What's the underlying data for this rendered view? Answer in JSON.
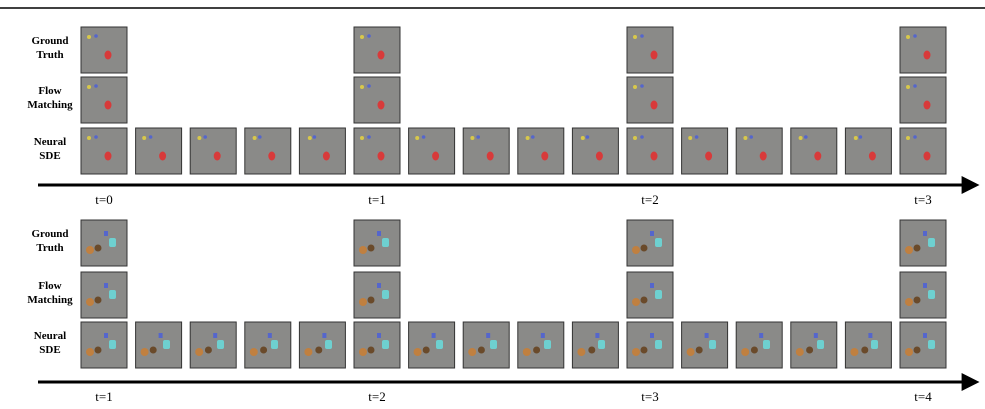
{
  "panels": [
    {
      "rows": [
        {
          "label": [
            "Ground",
            "Truth"
          ]
        },
        {
          "label": [
            "Flow",
            "Matching"
          ]
        },
        {
          "label": [
            "Neural",
            "SDE"
          ]
        }
      ],
      "time_labels": [
        "t=0",
        "t=1",
        "t=2",
        "t=3"
      ]
    },
    {
      "rows": [
        {
          "label": [
            "Ground",
            "Truth"
          ]
        },
        {
          "label": [
            "Flow",
            "Matching"
          ]
        },
        {
          "label": [
            "Neural",
            "SDE"
          ]
        }
      ],
      "time_labels": [
        "t=1",
        "t=2",
        "t=3",
        "t=4"
      ]
    }
  ]
}
